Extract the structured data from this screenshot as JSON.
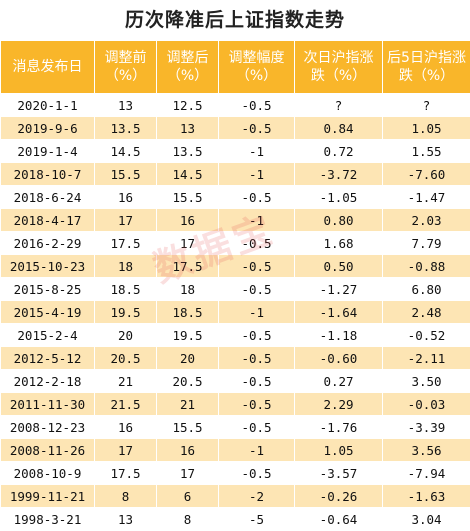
{
  "title": "历次降准后上证指数走势",
  "watermark": "数据宝",
  "headers": [
    "消息发布日",
    "调整前（%）",
    "调整后（%）",
    "调整幅度（%）",
    "次日沪指涨跌（%）",
    "后5日沪指涨跌（%）"
  ],
  "rows": [
    [
      "2020-1-1",
      "13",
      "12.5",
      "-0.5",
      "?",
      "?"
    ],
    [
      "2019-9-6",
      "13.5",
      "13",
      "-0.5",
      "0.84",
      "1.05"
    ],
    [
      "2019-1-4",
      "14.5",
      "13.5",
      "-1",
      "0.72",
      "1.55"
    ],
    [
      "2018-10-7",
      "15.5",
      "14.5",
      "-1",
      "-3.72",
      "-7.60"
    ],
    [
      "2018-6-24",
      "16",
      "15.5",
      "-0.5",
      "-1.05",
      "-1.47"
    ],
    [
      "2018-4-17",
      "17",
      "16",
      "-1",
      "0.80",
      "2.03"
    ],
    [
      "2016-2-29",
      "17.5",
      "17",
      "-0.5",
      "1.68",
      "7.79"
    ],
    [
      "2015-10-23",
      "18",
      "17.5",
      "-0.5",
      "0.50",
      "-0.88"
    ],
    [
      "2015-8-25",
      "18.5",
      "18",
      "-0.5",
      "-1.27",
      "6.80"
    ],
    [
      "2015-4-19",
      "19.5",
      "18.5",
      "-1",
      "-1.64",
      "2.48"
    ],
    [
      "2015-2-4",
      "20",
      "19.5",
      "-0.5",
      "-1.18",
      "-0.52"
    ],
    [
      "2012-5-12",
      "20.5",
      "20",
      "-0.5",
      "-0.60",
      "-2.11"
    ],
    [
      "2012-2-18",
      "21",
      "20.5",
      "-0.5",
      "0.27",
      "3.50"
    ],
    [
      "2011-11-30",
      "21.5",
      "21",
      "-0.5",
      "2.29",
      "-0.03"
    ],
    [
      "2008-12-23",
      "16",
      "15.5",
      "-0.5",
      "-1.76",
      "-3.39"
    ],
    [
      "2008-11-26",
      "17",
      "16",
      "-1",
      "1.05",
      "3.56"
    ],
    [
      "2008-10-9",
      "17.5",
      "17",
      "-0.5",
      "-3.57",
      "-7.94"
    ],
    [
      "1999-11-21",
      "8",
      "6",
      "-2",
      "-0.26",
      "-1.63"
    ],
    [
      "1998-3-21",
      "13",
      "8",
      "-5",
      "-0.64",
      "3.04"
    ]
  ],
  "colors": {
    "header_bg": "#f9b62a",
    "header_text": "#ffffff",
    "row_alt_bg": "#fde5b4",
    "row_bg": "#ffffff"
  }
}
